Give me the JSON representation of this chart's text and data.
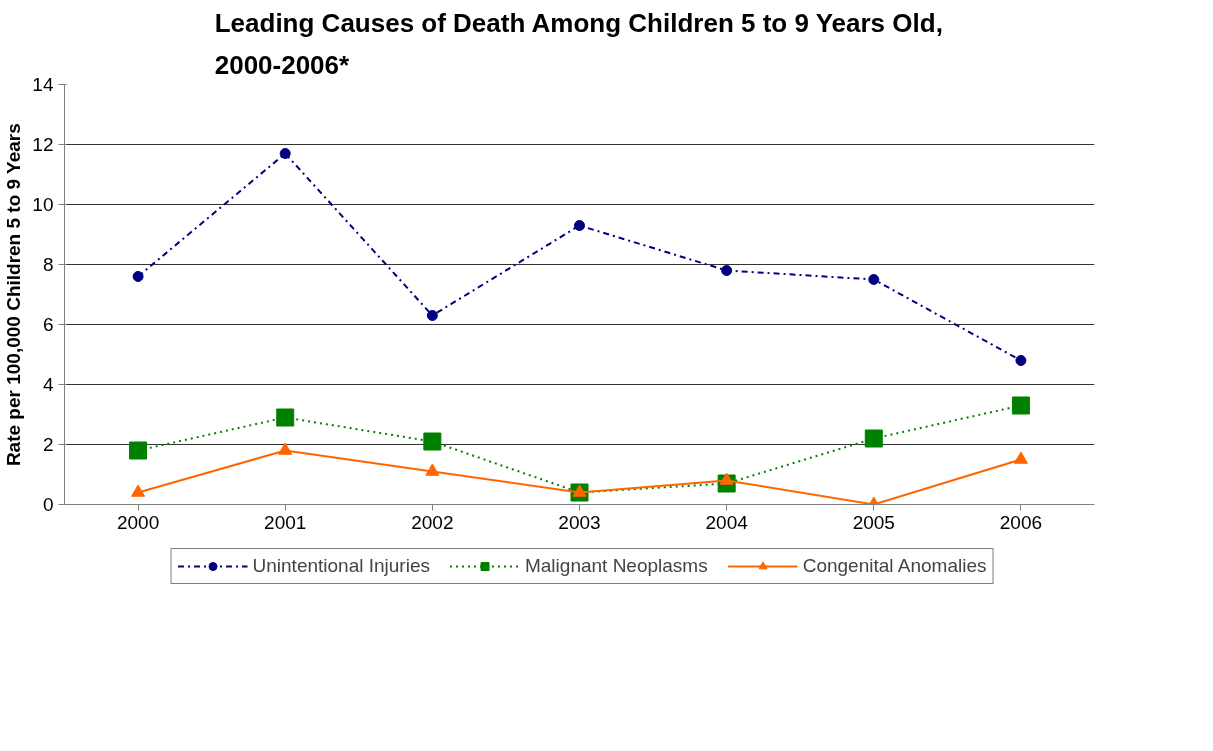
{
  "chart_data": {
    "type": "line",
    "title": "Leading Causes of Death Among Children 5 to 9 Years Old,\n2000-2006*",
    "ylabel": "Rate per 100,000 Children 5 to 9 Years",
    "categories": [
      "2000",
      "2001",
      "2002",
      "2003",
      "2004",
      "2005",
      "2006"
    ],
    "series": [
      {
        "name": "Unintentional Injuries",
        "color": "#000080",
        "values": [
          7.6,
          11.7,
          6.3,
          9.3,
          7.8,
          7.5,
          4.8
        ],
        "marker": "circle",
        "line_style": "dashdot"
      },
      {
        "name": "Malignant Neoplasms",
        "color": "#008000",
        "values": [
          1.8,
          2.9,
          2.1,
          0.4,
          0.7,
          2.2,
          3.3
        ],
        "marker": "square",
        "line_style": "dotted"
      },
      {
        "name": "Congenital Anomalies",
        "color": "#ff6600",
        "values": [
          0.4,
          1.8,
          1.1,
          0.4,
          0.8,
          0.0,
          1.5
        ],
        "marker": "triangle",
        "line_style": "solid"
      }
    ],
    "ylim": [
      0,
      14
    ],
    "yticks": [
      0,
      2,
      4,
      6,
      8,
      10,
      12,
      14
    ],
    "grid": "y",
    "legend": "bottom"
  }
}
